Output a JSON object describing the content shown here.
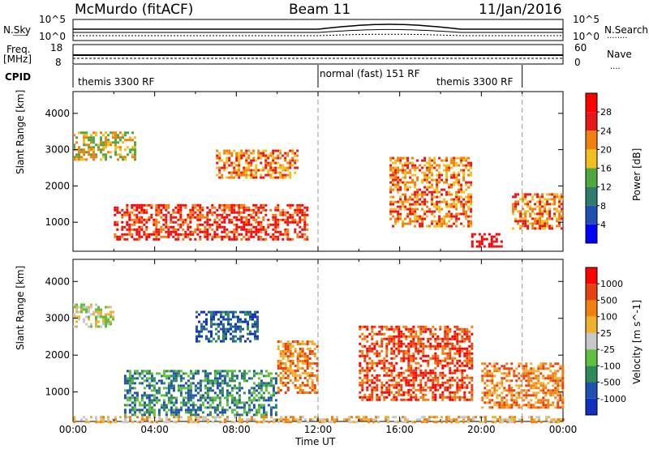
{
  "header": {
    "station": "McMurdo (fitACF)",
    "beam": "Beam 11",
    "date": "11/Jan/2016"
  },
  "top_strips": {
    "left_labels": {
      "nsky": "N.Sky",
      "freq": "Freq.",
      "freq_unit": "[MHz]",
      "cpid": "CPID"
    },
    "right_labels": {
      "nsearch": "N.Search",
      "nave": "Nave"
    },
    "nsky_ticks": [
      "10^5",
      "10^0"
    ],
    "freq_ticks": [
      "18",
      "8"
    ],
    "nave_ticks": [
      "60",
      "0"
    ],
    "nsearch_ticks": [
      "10^5",
      "10^0"
    ],
    "cpid_segments": [
      {
        "label": "themis 3300 RF",
        "start_hour": 0,
        "end_hour": 12
      },
      {
        "label": "normal (fast) 151 RF",
        "start_hour": 12,
        "end_hour": 22
      },
      {
        "label": "themis 3300 RF",
        "start_hour": 22,
        "end_hour": 24
      }
    ]
  },
  "chart_data": [
    {
      "type": "heatmap",
      "title": "",
      "xlabel": "",
      "ylabel": "Slant Range [km]",
      "xlim": [
        0,
        24
      ],
      "ylim": [
        200,
        4600
      ],
      "y_ticks": [
        1000,
        2000,
        3000,
        4000
      ],
      "colorbar": {
        "label": "Power [dB]",
        "ticks": [
          "4",
          "8",
          "12",
          "16",
          "20",
          "24",
          "28"
        ],
        "colors": [
          "#0000ff",
          "#1f4fb0",
          "#2e7d6b",
          "#4fa83f",
          "#f0c020",
          "#f08010",
          "#e81818",
          "#ff0000"
        ]
      },
      "echo_regions": [
        {
          "hour_start": 0.0,
          "hour_end": 3.0,
          "range_start": 2700,
          "range_end": 3500,
          "level": 4
        },
        {
          "hour_start": 2.0,
          "hour_end": 11.5,
          "range_start": 500,
          "range_end": 1500,
          "level": 6
        },
        {
          "hour_start": 7.0,
          "hour_end": 11.0,
          "range_start": 2200,
          "range_end": 3000,
          "level": 5
        },
        {
          "hour_start": 15.5,
          "hour_end": 19.5,
          "range_start": 900,
          "range_end": 2800,
          "level": 5
        },
        {
          "hour_start": 19.5,
          "hour_end": 21.0,
          "range_start": 300,
          "range_end": 700,
          "level": 7
        },
        {
          "hour_start": 21.5,
          "hour_end": 24.0,
          "range_start": 800,
          "range_end": 1800,
          "level": 5
        }
      ]
    },
    {
      "type": "heatmap",
      "title": "",
      "xlabel": "Time UT",
      "ylabel": "Slant Range [km]",
      "xlim": [
        0,
        24
      ],
      "ylim": [
        200,
        4600
      ],
      "y_ticks": [
        1000,
        2000,
        3000,
        4000
      ],
      "x_ticks": [
        "00:00",
        "04:00",
        "08:00",
        "12:00",
        "16:00",
        "20:00",
        "00:00"
      ],
      "colorbar": {
        "label": "Velocity [m s^-1]",
        "ticks": [
          "1000",
          "500",
          "100",
          "25",
          "-25",
          "-100",
          "-500",
          "-1000"
        ],
        "colors": [
          "#1030c0",
          "#2050b0",
          "#2e8b57",
          "#5fbf3f",
          "#c8c8c8",
          "#f0b030",
          "#f08010",
          "#e84010",
          "#ff0000"
        ]
      },
      "echo_regions": [
        {
          "hour_start": 0.0,
          "hour_end": 2.0,
          "range_start": 2800,
          "range_end": 3400,
          "level": 4
        },
        {
          "hour_start": 2.5,
          "hour_end": 10.0,
          "range_start": 400,
          "range_end": 1600,
          "level": 2
        },
        {
          "hour_start": 6.0,
          "hour_end": 9.0,
          "range_start": 2400,
          "range_end": 3200,
          "level": 1
        },
        {
          "hour_start": 10.0,
          "hour_end": 12.0,
          "range_start": 1000,
          "range_end": 2400,
          "level": 6
        },
        {
          "hour_start": 14.0,
          "hour_end": 19.5,
          "range_start": 800,
          "range_end": 2800,
          "level": 7
        },
        {
          "hour_start": 20.0,
          "hour_end": 24.0,
          "range_start": 600,
          "range_end": 1800,
          "level": 6
        },
        {
          "hour_start": 0.0,
          "hour_end": 24.0,
          "range_start": 200,
          "range_end": 350,
          "level": 5
        }
      ]
    }
  ]
}
